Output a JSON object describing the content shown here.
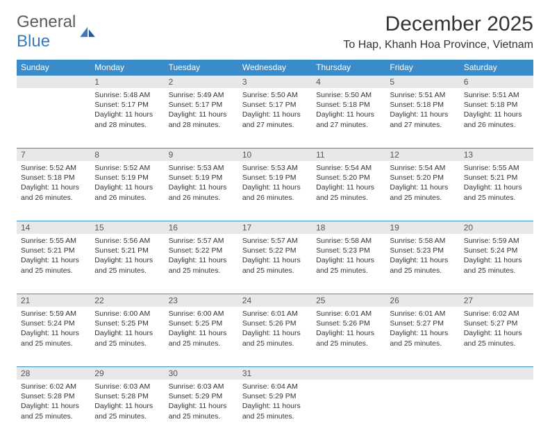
{
  "brand": {
    "name_a": "General",
    "name_b": "Blue"
  },
  "title": "December 2025",
  "location": "To Hap, Khanh Hoa Province, Vietnam",
  "colors": {
    "header_bg": "#3a8bc9",
    "header_text": "#ffffff",
    "daynum_bg": "#e8e8e8",
    "week_divider": "#3a8bc9",
    "body_text": "#333333",
    "brand_gray": "#5a5a5a",
    "brand_blue": "#3a7ab8"
  },
  "weekdays": [
    "Sunday",
    "Monday",
    "Tuesday",
    "Wednesday",
    "Thursday",
    "Friday",
    "Saturday"
  ],
  "first_weekday_index": 1,
  "days": [
    {
      "n": 1,
      "sunrise": "5:48 AM",
      "sunset": "5:17 PM",
      "daylight": "11 hours and 28 minutes."
    },
    {
      "n": 2,
      "sunrise": "5:49 AM",
      "sunset": "5:17 PM",
      "daylight": "11 hours and 28 minutes."
    },
    {
      "n": 3,
      "sunrise": "5:50 AM",
      "sunset": "5:17 PM",
      "daylight": "11 hours and 27 minutes."
    },
    {
      "n": 4,
      "sunrise": "5:50 AM",
      "sunset": "5:18 PM",
      "daylight": "11 hours and 27 minutes."
    },
    {
      "n": 5,
      "sunrise": "5:51 AM",
      "sunset": "5:18 PM",
      "daylight": "11 hours and 27 minutes."
    },
    {
      "n": 6,
      "sunrise": "5:51 AM",
      "sunset": "5:18 PM",
      "daylight": "11 hours and 26 minutes."
    },
    {
      "n": 7,
      "sunrise": "5:52 AM",
      "sunset": "5:18 PM",
      "daylight": "11 hours and 26 minutes."
    },
    {
      "n": 8,
      "sunrise": "5:52 AM",
      "sunset": "5:19 PM",
      "daylight": "11 hours and 26 minutes."
    },
    {
      "n": 9,
      "sunrise": "5:53 AM",
      "sunset": "5:19 PM",
      "daylight": "11 hours and 26 minutes."
    },
    {
      "n": 10,
      "sunrise": "5:53 AM",
      "sunset": "5:19 PM",
      "daylight": "11 hours and 26 minutes."
    },
    {
      "n": 11,
      "sunrise": "5:54 AM",
      "sunset": "5:20 PM",
      "daylight": "11 hours and 25 minutes."
    },
    {
      "n": 12,
      "sunrise": "5:54 AM",
      "sunset": "5:20 PM",
      "daylight": "11 hours and 25 minutes."
    },
    {
      "n": 13,
      "sunrise": "5:55 AM",
      "sunset": "5:21 PM",
      "daylight": "11 hours and 25 minutes."
    },
    {
      "n": 14,
      "sunrise": "5:55 AM",
      "sunset": "5:21 PM",
      "daylight": "11 hours and 25 minutes."
    },
    {
      "n": 15,
      "sunrise": "5:56 AM",
      "sunset": "5:21 PM",
      "daylight": "11 hours and 25 minutes."
    },
    {
      "n": 16,
      "sunrise": "5:57 AM",
      "sunset": "5:22 PM",
      "daylight": "11 hours and 25 minutes."
    },
    {
      "n": 17,
      "sunrise": "5:57 AM",
      "sunset": "5:22 PM",
      "daylight": "11 hours and 25 minutes."
    },
    {
      "n": 18,
      "sunrise": "5:58 AM",
      "sunset": "5:23 PM",
      "daylight": "11 hours and 25 minutes."
    },
    {
      "n": 19,
      "sunrise": "5:58 AM",
      "sunset": "5:23 PM",
      "daylight": "11 hours and 25 minutes."
    },
    {
      "n": 20,
      "sunrise": "5:59 AM",
      "sunset": "5:24 PM",
      "daylight": "11 hours and 25 minutes."
    },
    {
      "n": 21,
      "sunrise": "5:59 AM",
      "sunset": "5:24 PM",
      "daylight": "11 hours and 25 minutes."
    },
    {
      "n": 22,
      "sunrise": "6:00 AM",
      "sunset": "5:25 PM",
      "daylight": "11 hours and 25 minutes."
    },
    {
      "n": 23,
      "sunrise": "6:00 AM",
      "sunset": "5:25 PM",
      "daylight": "11 hours and 25 minutes."
    },
    {
      "n": 24,
      "sunrise": "6:01 AM",
      "sunset": "5:26 PM",
      "daylight": "11 hours and 25 minutes."
    },
    {
      "n": 25,
      "sunrise": "6:01 AM",
      "sunset": "5:26 PM",
      "daylight": "11 hours and 25 minutes."
    },
    {
      "n": 26,
      "sunrise": "6:01 AM",
      "sunset": "5:27 PM",
      "daylight": "11 hours and 25 minutes."
    },
    {
      "n": 27,
      "sunrise": "6:02 AM",
      "sunset": "5:27 PM",
      "daylight": "11 hours and 25 minutes."
    },
    {
      "n": 28,
      "sunrise": "6:02 AM",
      "sunset": "5:28 PM",
      "daylight": "11 hours and 25 minutes."
    },
    {
      "n": 29,
      "sunrise": "6:03 AM",
      "sunset": "5:28 PM",
      "daylight": "11 hours and 25 minutes."
    },
    {
      "n": 30,
      "sunrise": "6:03 AM",
      "sunset": "5:29 PM",
      "daylight": "11 hours and 25 minutes."
    },
    {
      "n": 31,
      "sunrise": "6:04 AM",
      "sunset": "5:29 PM",
      "daylight": "11 hours and 25 minutes."
    }
  ],
  "labels": {
    "sunrise": "Sunrise:",
    "sunset": "Sunset:",
    "daylight": "Daylight:"
  }
}
